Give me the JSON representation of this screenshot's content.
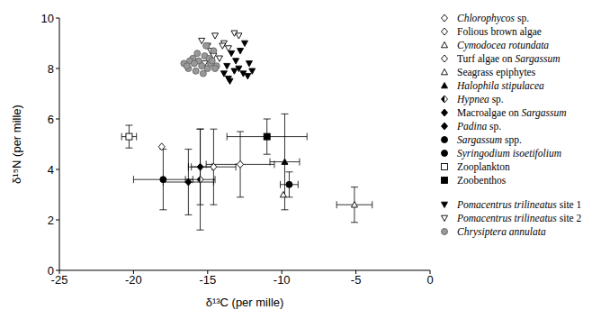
{
  "chart_data": {
    "type": "scatter",
    "xlabel": "δ¹³C (per mille)",
    "ylabel": "δ¹⁵N (per mille)",
    "xlim": [
      -25,
      0
    ],
    "xticks": [
      -25,
      -20,
      -15,
      -10,
      -5,
      0
    ],
    "ylim": [
      0,
      10
    ],
    "yticks": [
      0,
      2,
      4,
      6,
      8,
      10
    ],
    "grid": false,
    "legend": "right",
    "series": [
      {
        "name": "Chlorophycos sp.",
        "color": "#000000",
        "marker": "diamond_open",
        "x": [
          -12.8
        ],
        "y": [
          4.2
        ],
        "x_error": [
          2.3
        ],
        "y_error": [
          1.3
        ]
      },
      {
        "name": "Folious brown algae",
        "color": "#000000",
        "marker": "diamond_open",
        "x": [
          -18.1
        ],
        "y": [
          4.9
        ]
      },
      {
        "name": "Cymodocea rotundata",
        "color": "#000000",
        "marker": "triangle_open",
        "x": [
          -5.1
        ],
        "y": [
          2.6
        ],
        "x_error": [
          1.2
        ],
        "y_error": [
          0.7
        ]
      },
      {
        "name": "Turf algae on Sargassum",
        "color": "#000000",
        "marker": "diamond_open",
        "x": [
          -14.6
        ],
        "y": [
          4.1
        ],
        "x_error": [
          1.5
        ],
        "y_error": [
          1.5
        ]
      },
      {
        "name": "Seagrass epiphytes",
        "color": "#000000",
        "marker": "triangle_open",
        "x": [
          -9.9
        ],
        "y": [
          3.0
        ]
      },
      {
        "name": "Halophila stipulacea",
        "color": "#000000",
        "marker": "triangle",
        "x": [
          -9.8
        ],
        "y": [
          4.3
        ],
        "x_error": [
          1.0
        ],
        "y_error": [
          1.9
        ]
      },
      {
        "name": "Hypnea sp.",
        "color": "#000000",
        "marker": "diamond_half",
        "x": [
          -15.5
        ],
        "y": [
          3.6
        ],
        "x_error": [
          1.0
        ],
        "y_error": [
          2.0
        ]
      },
      {
        "name": "Macroalgae on Sargassum",
        "color": "#000000",
        "marker": "diamond",
        "x": [
          -15.5
        ],
        "y": [
          4.1
        ],
        "x_error": [
          0.8
        ],
        "y_error": [
          1.5
        ]
      },
      {
        "name": "Padina sp.",
        "color": "#000000",
        "marker": "diamond",
        "x": [
          -16.3
        ],
        "y": [
          3.5
        ],
        "x_error": [
          1.7
        ],
        "y_error": [
          1.3
        ]
      },
      {
        "name": "Sargassum spp.",
        "color": "#000000",
        "marker": "circle",
        "x": [
          -18.0
        ],
        "y": [
          3.6
        ],
        "x_error": [
          2.0
        ],
        "y_error": [
          1.2
        ]
      },
      {
        "name": "Syringodium isoetifolium",
        "color": "#000000",
        "marker": "circle",
        "x": [
          -9.5
        ],
        "y": [
          3.4
        ],
        "x_error": [
          0.6
        ],
        "y_error": [
          0.5
        ]
      },
      {
        "name": "Zooplankton",
        "color": "#000000",
        "marker": "square_open",
        "x": [
          -20.3
        ],
        "y": [
          5.3
        ],
        "x_error": [
          0.5
        ],
        "y_error": [
          0.45
        ]
      },
      {
        "name": "Zoobenthos",
        "color": "#000000",
        "marker": "square",
        "x": [
          -11.0
        ],
        "y": [
          5.3
        ],
        "x_error": [
          2.7
        ],
        "y_error": [
          0.7
        ]
      },
      {
        "name": "Pomacentrus trilineatus site 1",
        "color": "#000000",
        "marker": "triangle_down",
        "x": [
          -13.9,
          -13.5,
          -13.2,
          -12.9,
          -12.6,
          -12.3,
          -13.7,
          -13.1,
          -12.8,
          -12.0,
          -13.4,
          -12.5,
          -13.6,
          -12.2
        ],
        "y": [
          7.8,
          7.5,
          7.9,
          8.0,
          7.8,
          7.7,
          8.1,
          8.3,
          8.7,
          7.9,
          8.6,
          9.0,
          7.6,
          8.2
        ]
      },
      {
        "name": "Pomacentrus trilineatus site 2",
        "color": "#000000",
        "marker": "triangle_down_open",
        "x": [
          -15.4,
          -15.0,
          -14.8,
          -14.5,
          -14.2,
          -13.9,
          -13.6,
          -13.2,
          -12.9,
          -14.6,
          -15.2,
          -14.0
        ],
        "y": [
          9.1,
          8.9,
          8.7,
          9.3,
          8.4,
          9.0,
          8.8,
          9.4,
          9.3,
          8.5,
          8.2,
          8.9
        ]
      },
      {
        "name": "Chrysiptera annulata",
        "color": "#999999",
        "marker": "circle",
        "x": [
          -16.6,
          -16.3,
          -16.0,
          -15.8,
          -15.6,
          -15.4,
          -15.2,
          -15.0,
          -14.8,
          -14.6,
          -14.4,
          -16.2,
          -15.7,
          -15.3,
          -14.9,
          -14.5,
          -16.4,
          -15.9,
          -15.1,
          -14.7
        ],
        "y": [
          8.2,
          8.0,
          8.4,
          7.9,
          8.3,
          8.1,
          8.5,
          8.0,
          8.2,
          8.7,
          8.1,
          8.3,
          8.6,
          7.8,
          8.4,
          8.0,
          8.1,
          8.2,
          8.9,
          8.3
        ]
      }
    ]
  }
}
